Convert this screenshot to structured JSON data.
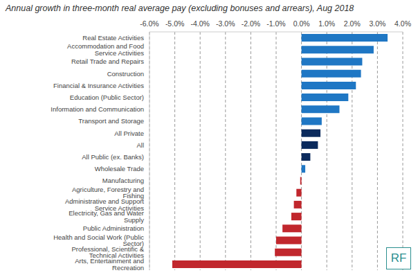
{
  "chart_data": {
    "type": "bar",
    "orientation": "horizontal",
    "title": "Annual growth in three-month real average pay (excluding bonuses and arrears), Aug 2018",
    "categories": [
      "Real Estate Activities",
      "Accommodation and Food Service Activities",
      "Retail Trade and Repairs",
      "Construction",
      "Financial & Insurance Activities",
      "Education (Public Sector)",
      "Information and Communication",
      "Transport and Storage",
      "All Private",
      "All",
      "All Public (ex. Banks)",
      "Wholesale Trade",
      "Manufacturing",
      "Agriculture, Forestry and Fishing",
      "Administrative and Support Service Activities",
      "Electricity, Gas and Water Supply",
      "Public Administration",
      "Health and Social Work (Public Sector)",
      "Professional, Scientific & Technical Activities",
      "Arts, Entertainment and Recreation"
    ],
    "values": [
      3.4,
      2.85,
      2.4,
      2.35,
      2.15,
      1.85,
      1.5,
      0.8,
      0.75,
      0.65,
      0.35,
      0.15,
      -0.05,
      -0.2,
      -0.3,
      -0.4,
      -0.75,
      -1.0,
      -1.05,
      -5.1
    ],
    "colors": [
      "#1f77c4",
      "#1f77c4",
      "#1f77c4",
      "#1f77c4",
      "#1f77c4",
      "#1f77c4",
      "#1f77c4",
      "#1f77c4",
      "#0b2a5c",
      "#0b2a5c",
      "#0b2a5c",
      "#1f77c4",
      "#c1272d",
      "#c1272d",
      "#c1272d",
      "#c1272d",
      "#c1272d",
      "#c1272d",
      "#c1272d",
      "#c1272d"
    ],
    "xlim": [
      -6,
      4
    ],
    "xticks": [
      {
        "value": -6,
        "label": "-6.0%"
      },
      {
        "value": -5,
        "label": "-5.0%"
      },
      {
        "value": -4,
        "label": "-4.0%"
      },
      {
        "value": -3,
        "label": "-3.0%"
      },
      {
        "value": -2,
        "label": "-2.0%"
      },
      {
        "value": -1,
        "label": "-1.0%"
      },
      {
        "value": 0,
        "label": "0.0%"
      },
      {
        "value": 1,
        "label": "1.0%"
      },
      {
        "value": 2,
        "label": "2.0%"
      },
      {
        "value": 3,
        "label": "3.0%"
      },
      {
        "value": 4,
        "label": "4.0%"
      }
    ],
    "grid": true,
    "annotations": [
      "RF"
    ]
  }
}
